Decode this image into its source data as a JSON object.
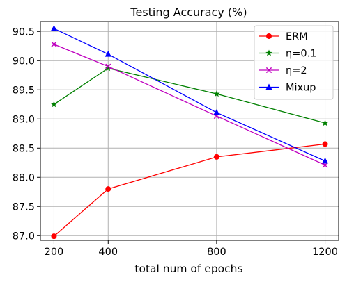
{
  "chart_data": {
    "type": "line",
    "title": "Testing Accuracy (%)",
    "xlabel": "total num of epochs",
    "ylabel": "",
    "x": [
      200,
      400,
      800,
      1200
    ],
    "xticks": [
      200,
      400,
      800,
      1200
    ],
    "xlim": [
      150,
      1250
    ],
    "ylim": [
      86.92,
      90.67
    ],
    "yticks": [
      "87.0",
      "87.5",
      "88.0",
      "88.5",
      "89.0",
      "89.5",
      "90.0",
      "90.5"
    ],
    "grid": true,
    "legend_position": "top-right",
    "series": [
      {
        "name": "ERM",
        "color": "#ff0000",
        "marker": "circle",
        "values": [
          86.99,
          87.8,
          88.35,
          88.57
        ]
      },
      {
        "name": "η=0.1",
        "color": "#008000",
        "marker": "star",
        "values": [
          89.25,
          89.87,
          89.43,
          88.93
        ]
      },
      {
        "name": "η=2",
        "color": "#bf00bf",
        "marker": "x",
        "values": [
          90.28,
          89.9,
          89.05,
          88.21
        ]
      },
      {
        "name": "Mixup",
        "color": "#0000ff",
        "marker": "triangle",
        "values": [
          90.55,
          90.11,
          89.11,
          88.28
        ]
      }
    ]
  }
}
